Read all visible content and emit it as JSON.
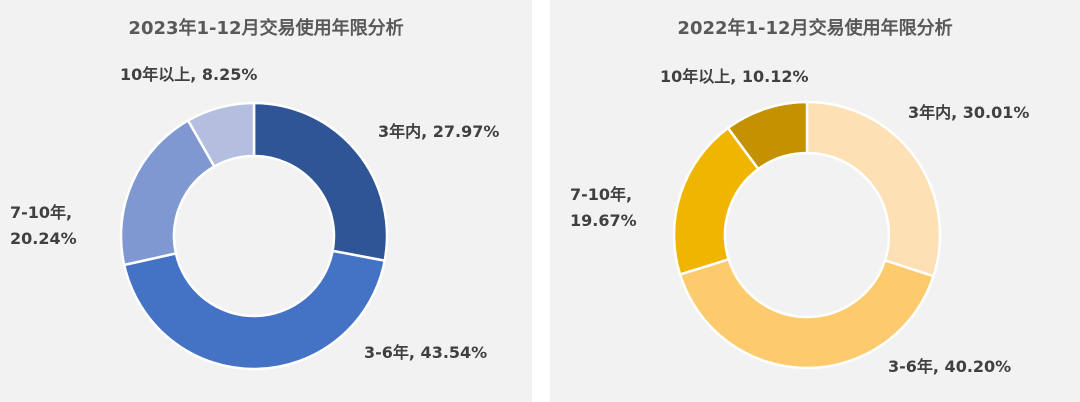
{
  "chart_data": [
    {
      "type": "pie",
      "title": "2023年1-12月交易使用年限分析",
      "categories": [
        "3年内",
        "3-6年",
        "7-10年",
        "10年以上"
      ],
      "values": [
        27.97,
        43.54,
        20.24,
        8.25
      ],
      "unit": "%",
      "labels": [
        [
          "3年内, 27.97%"
        ],
        [
          "3-6年, 43.54%"
        ],
        [
          "7-10年,",
          "20.24%"
        ],
        [
          "10年以上, 8.25%"
        ]
      ],
      "colors": [
        "#2f5597",
        "#4472c4",
        "#7f98d1",
        "#b4bfe0"
      ]
    },
    {
      "type": "pie",
      "title": "2022年1-12月交易使用年限分析",
      "categories": [
        "3年内",
        "3-6年",
        "7-10年",
        "10年以上"
      ],
      "values": [
        30.01,
        40.2,
        19.67,
        10.12
      ],
      "unit": "%",
      "labels": [
        [
          "3年内, 30.01%"
        ],
        [
          "3-6年, 40.20%"
        ],
        [
          "7-10年,",
          "19.67%"
        ],
        [
          "10年以上, 10.12%"
        ]
      ],
      "colors": [
        "#fde0b4",
        "#fdca6e",
        "#efb500",
        "#c49200"
      ]
    }
  ]
}
